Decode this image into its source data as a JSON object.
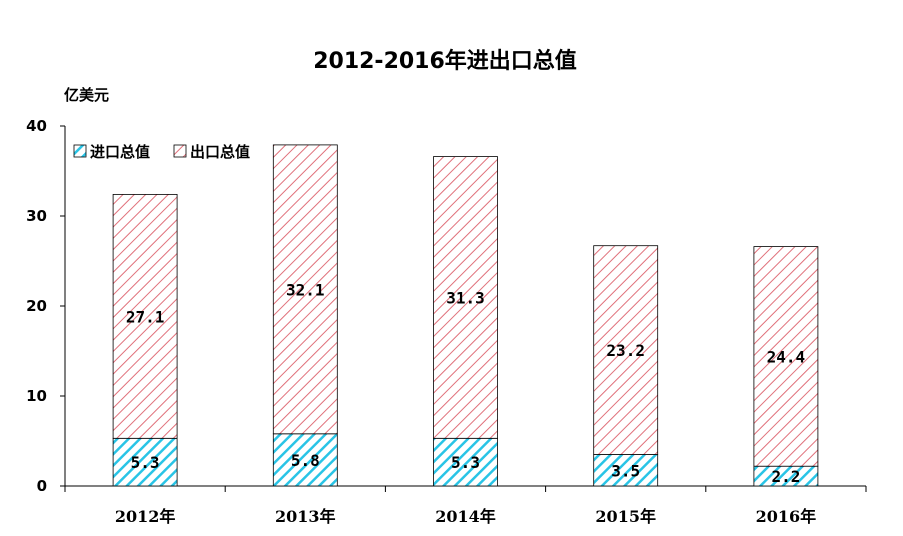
{
  "chart_data": {
    "type": "bar",
    "stacked": true,
    "title": "2012-2016年进出口总值",
    "ylabel": "亿美元",
    "xlabel": "",
    "categories": [
      "2012年",
      "2013年",
      "2014年",
      "2015年",
      "2016年"
    ],
    "ylim": [
      0,
      40
    ],
    "yticks": [
      "0",
      "10",
      "20",
      "30",
      "40"
    ],
    "series": [
      {
        "name": "进口总值",
        "values": [
          5.3,
          5.8,
          5.3,
          3.5,
          2.2
        ],
        "labels": [
          "5.3",
          "5.8",
          "5.3",
          "3.5",
          "2.2"
        ],
        "color": "#29c4e6"
      },
      {
        "name": "出口总值",
        "values": [
          27.1,
          32.1,
          31.3,
          23.2,
          24.4
        ],
        "labels": [
          "27.1",
          "32.1",
          "31.3",
          "23.2",
          "24.4"
        ],
        "color": "#e0707a"
      }
    ],
    "legend": "top-left",
    "grid": false
  }
}
